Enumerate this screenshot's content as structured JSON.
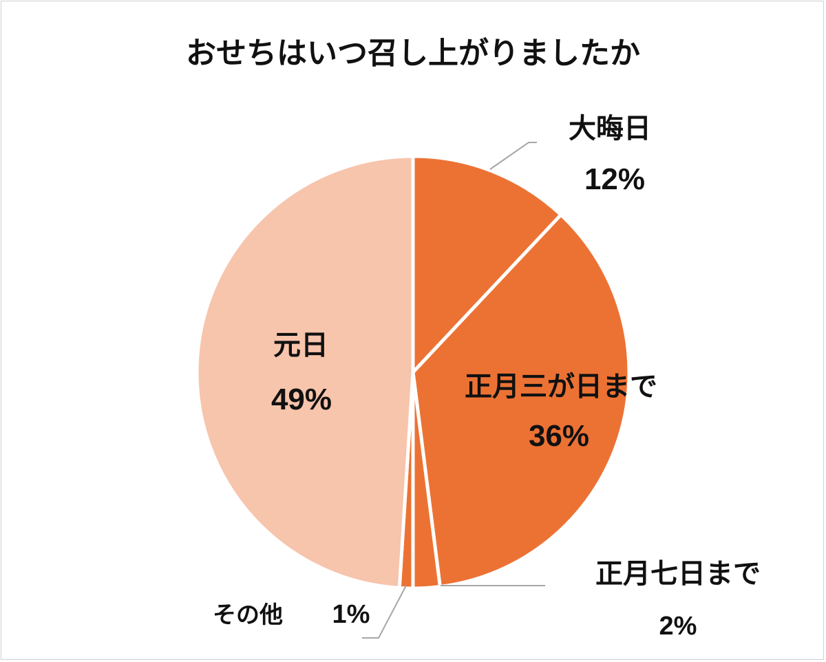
{
  "chart_data": {
    "type": "pie",
    "title": "おせちはいつ召し上がりましたか",
    "slices": [
      {
        "label": "大晦日",
        "value": 12,
        "value_label": "12%",
        "color": "#ec7234"
      },
      {
        "label": "正月三が日まで",
        "value": 36,
        "value_label": "36%",
        "color": "#ec7234"
      },
      {
        "label": "正月七日まで",
        "value": 2,
        "value_label": "2%",
        "color": "#ec7234"
      },
      {
        "label": "その他",
        "value": 1,
        "value_label": "1%",
        "color": "#ec7234"
      },
      {
        "label": "元日",
        "value": 49,
        "value_label": "49%",
        "color": "#f7c4ac"
      }
    ]
  }
}
